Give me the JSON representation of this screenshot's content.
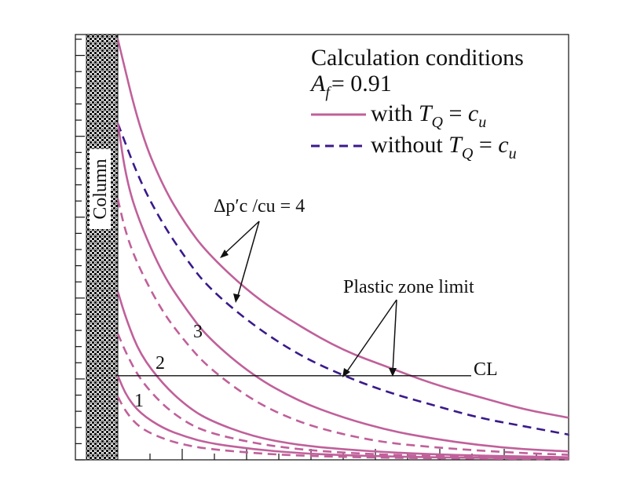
{
  "chart_data": {
    "type": "line",
    "title": "",
    "xlabel": "",
    "ylabel": "",
    "grid": false,
    "x_range": [
      0,
      1
    ],
    "y_range": [
      0,
      1
    ],
    "column_label": "Column",
    "legend": {
      "placement": "top-right",
      "title": "Calculation conditions",
      "af_label": "A",
      "af_sub": "f",
      "af_value": "= 0.91",
      "entries": [
        {
          "style": "solid",
          "color": "#c0609a",
          "prefix": "with ",
          "var": "T",
          "sub": "Q",
          "eq": " = ",
          "var2": "c",
          "sub2": "u"
        },
        {
          "style": "dashed",
          "color": "#3a1a8a",
          "prefix": "without ",
          "var": "T",
          "sub": "Q",
          "eq": " = ",
          "var2": "c",
          "sub2": "u"
        }
      ]
    },
    "series": [
      {
        "name": "with T_Q = c_u, Δp'c/cu = 4",
        "style": "solid",
        "color": "#c0609a",
        "x": [
          0,
          0.05,
          0.1,
          0.15,
          0.2,
          0.3,
          0.4,
          0.5,
          0.6,
          0.7,
          0.8,
          0.9,
          1.0
        ],
        "y": [
          1.0,
          0.78,
          0.65,
          0.56,
          0.49,
          0.39,
          0.32,
          0.26,
          0.22,
          0.18,
          0.15,
          0.12,
          0.1
        ]
      },
      {
        "name": "without T_Q = c_u, Δp'c/cu = 4",
        "style": "dashed",
        "color": "#3a1a8a",
        "x": [
          0,
          0.05,
          0.1,
          0.15,
          0.2,
          0.3,
          0.4,
          0.5,
          0.6,
          0.7,
          0.8,
          0.9,
          1.0
        ],
        "y": [
          0.8,
          0.66,
          0.56,
          0.48,
          0.41,
          0.32,
          0.25,
          0.2,
          0.16,
          0.13,
          0.1,
          0.08,
          0.06
        ]
      },
      {
        "name": "with, 3",
        "style": "solid",
        "color": "#c0609a",
        "x": [
          0,
          0.02,
          0.05,
          0.1,
          0.15,
          0.2,
          0.3,
          0.4,
          0.5,
          0.6,
          0.7,
          0.8,
          0.9,
          1.0
        ],
        "y": [
          0.8,
          0.66,
          0.56,
          0.44,
          0.36,
          0.29,
          0.2,
          0.14,
          0.1,
          0.07,
          0.05,
          0.035,
          0.025,
          0.02
        ]
      },
      {
        "name": "without, 3",
        "style": "dashed",
        "color": "#c0609a",
        "x": [
          0,
          0.02,
          0.05,
          0.1,
          0.15,
          0.2,
          0.3,
          0.4,
          0.5,
          0.6,
          0.7,
          0.8,
          0.9,
          1.0
        ],
        "y": [
          0.62,
          0.53,
          0.45,
          0.35,
          0.28,
          0.22,
          0.14,
          0.09,
          0.06,
          0.04,
          0.03,
          0.022,
          0.016,
          0.012
        ]
      },
      {
        "name": "with, 2",
        "style": "solid",
        "color": "#c0609a",
        "x": [
          0,
          0.02,
          0.05,
          0.1,
          0.15,
          0.2,
          0.3,
          0.4,
          0.5,
          0.6,
          0.7,
          0.8,
          0.9,
          1.0
        ],
        "y": [
          0.4,
          0.33,
          0.25,
          0.18,
          0.13,
          0.095,
          0.055,
          0.035,
          0.025,
          0.018,
          0.013,
          0.01,
          0.008,
          0.006
        ]
      },
      {
        "name": "without, 2",
        "style": "dashed",
        "color": "#c0609a",
        "x": [
          0,
          0.02,
          0.05,
          0.1,
          0.15,
          0.2,
          0.3,
          0.4,
          0.5,
          0.6,
          0.7,
          0.8,
          0.9,
          1.0
        ],
        "y": [
          0.3,
          0.25,
          0.19,
          0.13,
          0.09,
          0.065,
          0.04,
          0.025,
          0.017,
          0.012,
          0.009,
          0.007,
          0.005,
          0.004
        ]
      },
      {
        "name": "with, 1",
        "style": "solid",
        "color": "#c0609a",
        "x": [
          0,
          0.02,
          0.05,
          0.1,
          0.15,
          0.2,
          0.3,
          0.4,
          0.5,
          0.6,
          0.7,
          0.8,
          0.9,
          1.0
        ],
        "y": [
          0.2,
          0.15,
          0.11,
          0.075,
          0.055,
          0.04,
          0.025,
          0.016,
          0.011,
          0.008,
          0.006,
          0.005,
          0.004,
          0.003
        ]
      },
      {
        "name": "without, 1",
        "style": "dashed",
        "color": "#c0609a",
        "x": [
          0,
          0.02,
          0.05,
          0.1,
          0.15,
          0.2,
          0.3,
          0.4,
          0.5,
          0.6,
          0.7,
          0.8,
          0.9,
          1.0
        ],
        "y": [
          0.15,
          0.11,
          0.075,
          0.05,
          0.035,
          0.026,
          0.016,
          0.01,
          0.007,
          0.005,
          0.004,
          0.003,
          0.002,
          0.002
        ]
      }
    ],
    "cl_line": {
      "label": "CL",
      "y": 0.2
    },
    "annotations": {
      "ratio_label": "Δp′c /cu = 4",
      "plastic_zone": "Plastic zone limit",
      "curve_labels": [
        "1",
        "2",
        "3"
      ]
    }
  }
}
